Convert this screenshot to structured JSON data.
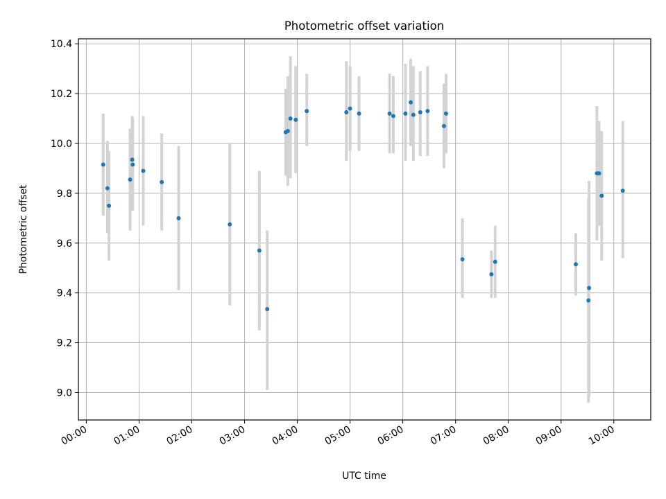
{
  "chart_data": {
    "type": "scatter",
    "title": "Photometric offset variation",
    "xlabel": "UTC time",
    "ylabel": "Photometric offset",
    "x_unit": "hours",
    "xlim": [
      -0.15,
      10.7
    ],
    "ylim": [
      8.89,
      10.42
    ],
    "x_ticks": [
      0,
      1,
      2,
      3,
      4,
      5,
      6,
      7,
      8,
      9,
      10
    ],
    "x_tick_labels": [
      "00:00",
      "01:00",
      "02:00",
      "03:00",
      "04:00",
      "05:00",
      "06:00",
      "07:00",
      "08:00",
      "09:00",
      "10:00"
    ],
    "y_ticks": [
      9.0,
      9.2,
      9.4,
      9.6,
      9.8,
      10.0,
      10.2,
      10.4
    ],
    "y_tick_labels": [
      "9.0",
      "9.2",
      "9.4",
      "9.6",
      "9.8",
      "10.0",
      "10.2",
      "10.4"
    ],
    "grid": true,
    "marker_color": "#1f77b4",
    "errorbar_color": "#d3d3d3",
    "points": [
      {
        "x": 0.32,
        "y": 9.915,
        "low": 9.71,
        "high": 10.12
      },
      {
        "x": 0.4,
        "y": 9.82,
        "low": 9.64,
        "high": 10.01
      },
      {
        "x": 0.43,
        "y": 9.75,
        "low": 9.53,
        "high": 9.97
      },
      {
        "x": 0.83,
        "y": 9.855,
        "low": 9.65,
        "high": 10.06
      },
      {
        "x": 0.87,
        "y": 9.935,
        "low": 9.73,
        "high": 10.11
      },
      {
        "x": 0.88,
        "y": 9.915,
        "low": 9.73,
        "high": 10.1
      },
      {
        "x": 1.08,
        "y": 9.89,
        "low": 9.67,
        "high": 10.11
      },
      {
        "x": 1.43,
        "y": 9.845,
        "low": 9.65,
        "high": 10.04
      },
      {
        "x": 1.75,
        "y": 9.7,
        "low": 9.41,
        "high": 9.99
      },
      {
        "x": 2.72,
        "y": 9.675,
        "low": 9.35,
        "high": 10.0
      },
      {
        "x": 3.28,
        "y": 9.57,
        "low": 9.25,
        "high": 9.89
      },
      {
        "x": 3.43,
        "y": 9.335,
        "low": 9.01,
        "high": 9.65
      },
      {
        "x": 3.78,
        "y": 10.045,
        "low": 9.87,
        "high": 10.22
      },
      {
        "x": 3.82,
        "y": 10.05,
        "low": 9.83,
        "high": 10.27
      },
      {
        "x": 3.87,
        "y": 10.1,
        "low": 9.86,
        "high": 10.35
      },
      {
        "x": 3.97,
        "y": 10.095,
        "low": 9.88,
        "high": 10.31
      },
      {
        "x": 4.18,
        "y": 10.13,
        "low": 9.99,
        "high": 10.28
      },
      {
        "x": 4.93,
        "y": 10.125,
        "low": 9.93,
        "high": 10.33
      },
      {
        "x": 5.0,
        "y": 10.14,
        "low": 9.97,
        "high": 10.31
      },
      {
        "x": 5.17,
        "y": 10.12,
        "low": 9.97,
        "high": 10.27
      },
      {
        "x": 5.75,
        "y": 10.12,
        "low": 9.96,
        "high": 10.28
      },
      {
        "x": 5.82,
        "y": 10.11,
        "low": 9.96,
        "high": 10.27
      },
      {
        "x": 6.05,
        "y": 10.12,
        "low": 9.93,
        "high": 10.32
      },
      {
        "x": 6.15,
        "y": 10.165,
        "low": 9.99,
        "high": 10.34
      },
      {
        "x": 6.2,
        "y": 10.115,
        "low": 9.93,
        "high": 10.31
      },
      {
        "x": 6.33,
        "y": 10.125,
        "low": 9.95,
        "high": 10.29
      },
      {
        "x": 6.47,
        "y": 10.13,
        "low": 9.95,
        "high": 10.31
      },
      {
        "x": 6.78,
        "y": 10.07,
        "low": 9.9,
        "high": 10.24
      },
      {
        "x": 6.82,
        "y": 10.12,
        "low": 9.96,
        "high": 10.28
      },
      {
        "x": 7.13,
        "y": 9.535,
        "low": 9.38,
        "high": 9.7
      },
      {
        "x": 7.68,
        "y": 9.475,
        "low": 9.38,
        "high": 9.57
      },
      {
        "x": 7.75,
        "y": 9.525,
        "low": 9.38,
        "high": 9.67
      },
      {
        "x": 9.28,
        "y": 9.515,
        "low": 9.39,
        "high": 9.64
      },
      {
        "x": 9.52,
        "y": 9.37,
        "low": 8.96,
        "high": 9.78
      },
      {
        "x": 9.53,
        "y": 9.42,
        "low": 8.98,
        "high": 9.85
      },
      {
        "x": 9.68,
        "y": 9.88,
        "low": 9.61,
        "high": 10.15
      },
      {
        "x": 9.72,
        "y": 9.88,
        "low": 9.67,
        "high": 10.09
      },
      {
        "x": 9.77,
        "y": 9.79,
        "low": 9.53,
        "high": 10.05
      },
      {
        "x": 10.17,
        "y": 9.81,
        "low": 9.54,
        "high": 10.09
      }
    ]
  }
}
